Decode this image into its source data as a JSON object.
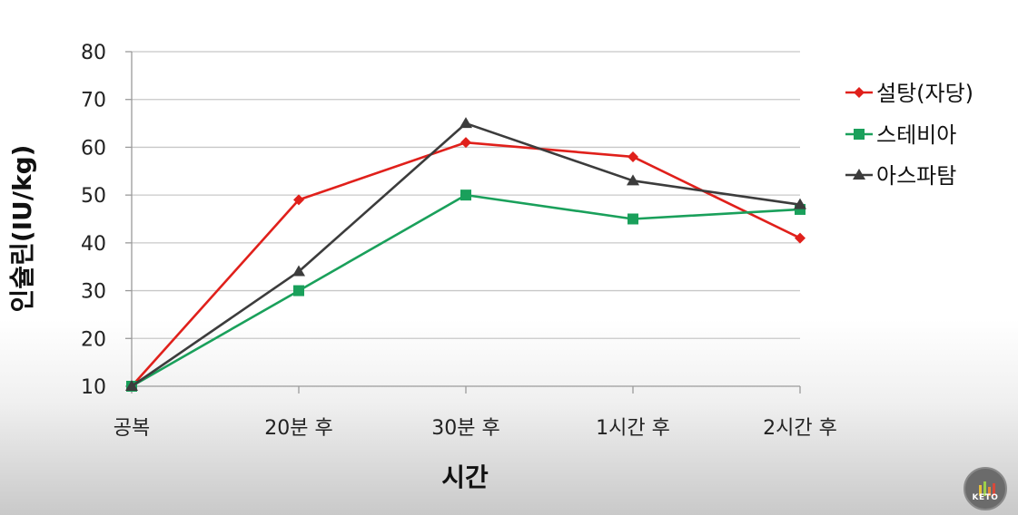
{
  "chart_data": {
    "type": "line",
    "categories": [
      "공복",
      "20분 후",
      "30분 후",
      "1시간 후",
      "2시간 후"
    ],
    "series": [
      {
        "name": "설탕(자당)",
        "values": [
          10,
          49,
          61,
          58,
          41
        ],
        "color": "#e0201b",
        "marker": "diamond"
      },
      {
        "name": "스테비아",
        "values": [
          10,
          30,
          50,
          45,
          47
        ],
        "color": "#1aa05b",
        "marker": "square"
      },
      {
        "name": "아스파탐",
        "values": [
          10,
          34,
          65,
          53,
          48
        ],
        "color": "#3c3c3c",
        "marker": "triangle"
      }
    ],
    "xlabel": "시간",
    "ylabel": "인슐린(IU/kg)",
    "ylim": [
      10,
      80
    ],
    "yticks": [
      10,
      20,
      30,
      40,
      50,
      60,
      70,
      80
    ],
    "grid": true,
    "legend": "right"
  },
  "logo": {
    "text": "KETO"
  }
}
